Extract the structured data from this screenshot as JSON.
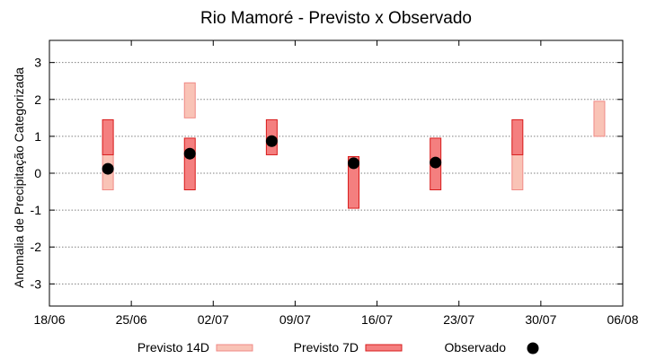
{
  "chart_data": {
    "type": "floating-bar-with-points",
    "title": "Rio Mamoré - Previsto x Observado",
    "xlabel": "",
    "ylabel": "Anomalia de Precipitação Categorizada",
    "x_range": [
      "2024-06-18",
      "2024-08-06"
    ],
    "x_ticks": [
      {
        "date": "2024-06-18",
        "label": "18/06"
      },
      {
        "date": "2024-06-25",
        "label": "25/06"
      },
      {
        "date": "2024-07-02",
        "label": "02/07"
      },
      {
        "date": "2024-07-09",
        "label": "09/07"
      },
      {
        "date": "2024-07-16",
        "label": "16/07"
      },
      {
        "date": "2024-07-23",
        "label": "23/07"
      },
      {
        "date": "2024-07-30",
        "label": "30/07"
      },
      {
        "date": "2024-08-06",
        "label": "06/08"
      }
    ],
    "ylim": [
      -3.6,
      3.6
    ],
    "y_ticks": [
      {
        "value": 3,
        "label": "3"
      },
      {
        "value": 2,
        "label": "2"
      },
      {
        "value": 1,
        "label": "1"
      },
      {
        "value": 0,
        "label": "0"
      },
      {
        "value": -1,
        "label": "-1"
      },
      {
        "value": -2,
        "label": "-2"
      },
      {
        "value": -3,
        "label": "-3"
      }
    ],
    "grid": true,
    "legend_position": "bottom",
    "legend": [
      {
        "key": "p14",
        "label": "Previsto 14D"
      },
      {
        "key": "p7",
        "label": "Previsto 7D"
      },
      {
        "key": "obs",
        "label": "Observado"
      }
    ],
    "colors": {
      "p14_fill": "#f9c3b6",
      "p14_stroke": "#f08a86",
      "p7_fill": "#f47f7f",
      "p7_stroke": "#d81c1c",
      "obs": "#000000",
      "grid": "#808080"
    },
    "series": {
      "p14": [
        {
          "date": "2024-06-23",
          "low": -0.45,
          "high": 0.95
        },
        {
          "date": "2024-06-30",
          "low": 1.5,
          "high": 2.45
        },
        {
          "date": "2024-07-14",
          "low": -0.45,
          "high": 0.45
        },
        {
          "date": "2024-07-28",
          "low": -0.45,
          "high": 0.95
        },
        {
          "date": "2024-08-04",
          "low": 1.0,
          "high": 1.95
        }
      ],
      "p7": [
        {
          "date": "2024-06-23",
          "low": 0.5,
          "high": 1.45
        },
        {
          "date": "2024-06-30",
          "low": -0.45,
          "high": 0.95
        },
        {
          "date": "2024-07-07",
          "low": 0.5,
          "high": 1.45
        },
        {
          "date": "2024-07-14",
          "low": -0.95,
          "high": 0.45
        },
        {
          "date": "2024-07-21",
          "low": -0.45,
          "high": 0.95
        },
        {
          "date": "2024-07-28",
          "low": 0.5,
          "high": 1.45
        }
      ],
      "obs": [
        {
          "date": "2024-06-23",
          "value": 0.12
        },
        {
          "date": "2024-06-30",
          "value": 0.53
        },
        {
          "date": "2024-07-07",
          "value": 0.87
        },
        {
          "date": "2024-07-14",
          "value": 0.27
        },
        {
          "date": "2024-07-21",
          "value": 0.29
        }
      ]
    }
  }
}
